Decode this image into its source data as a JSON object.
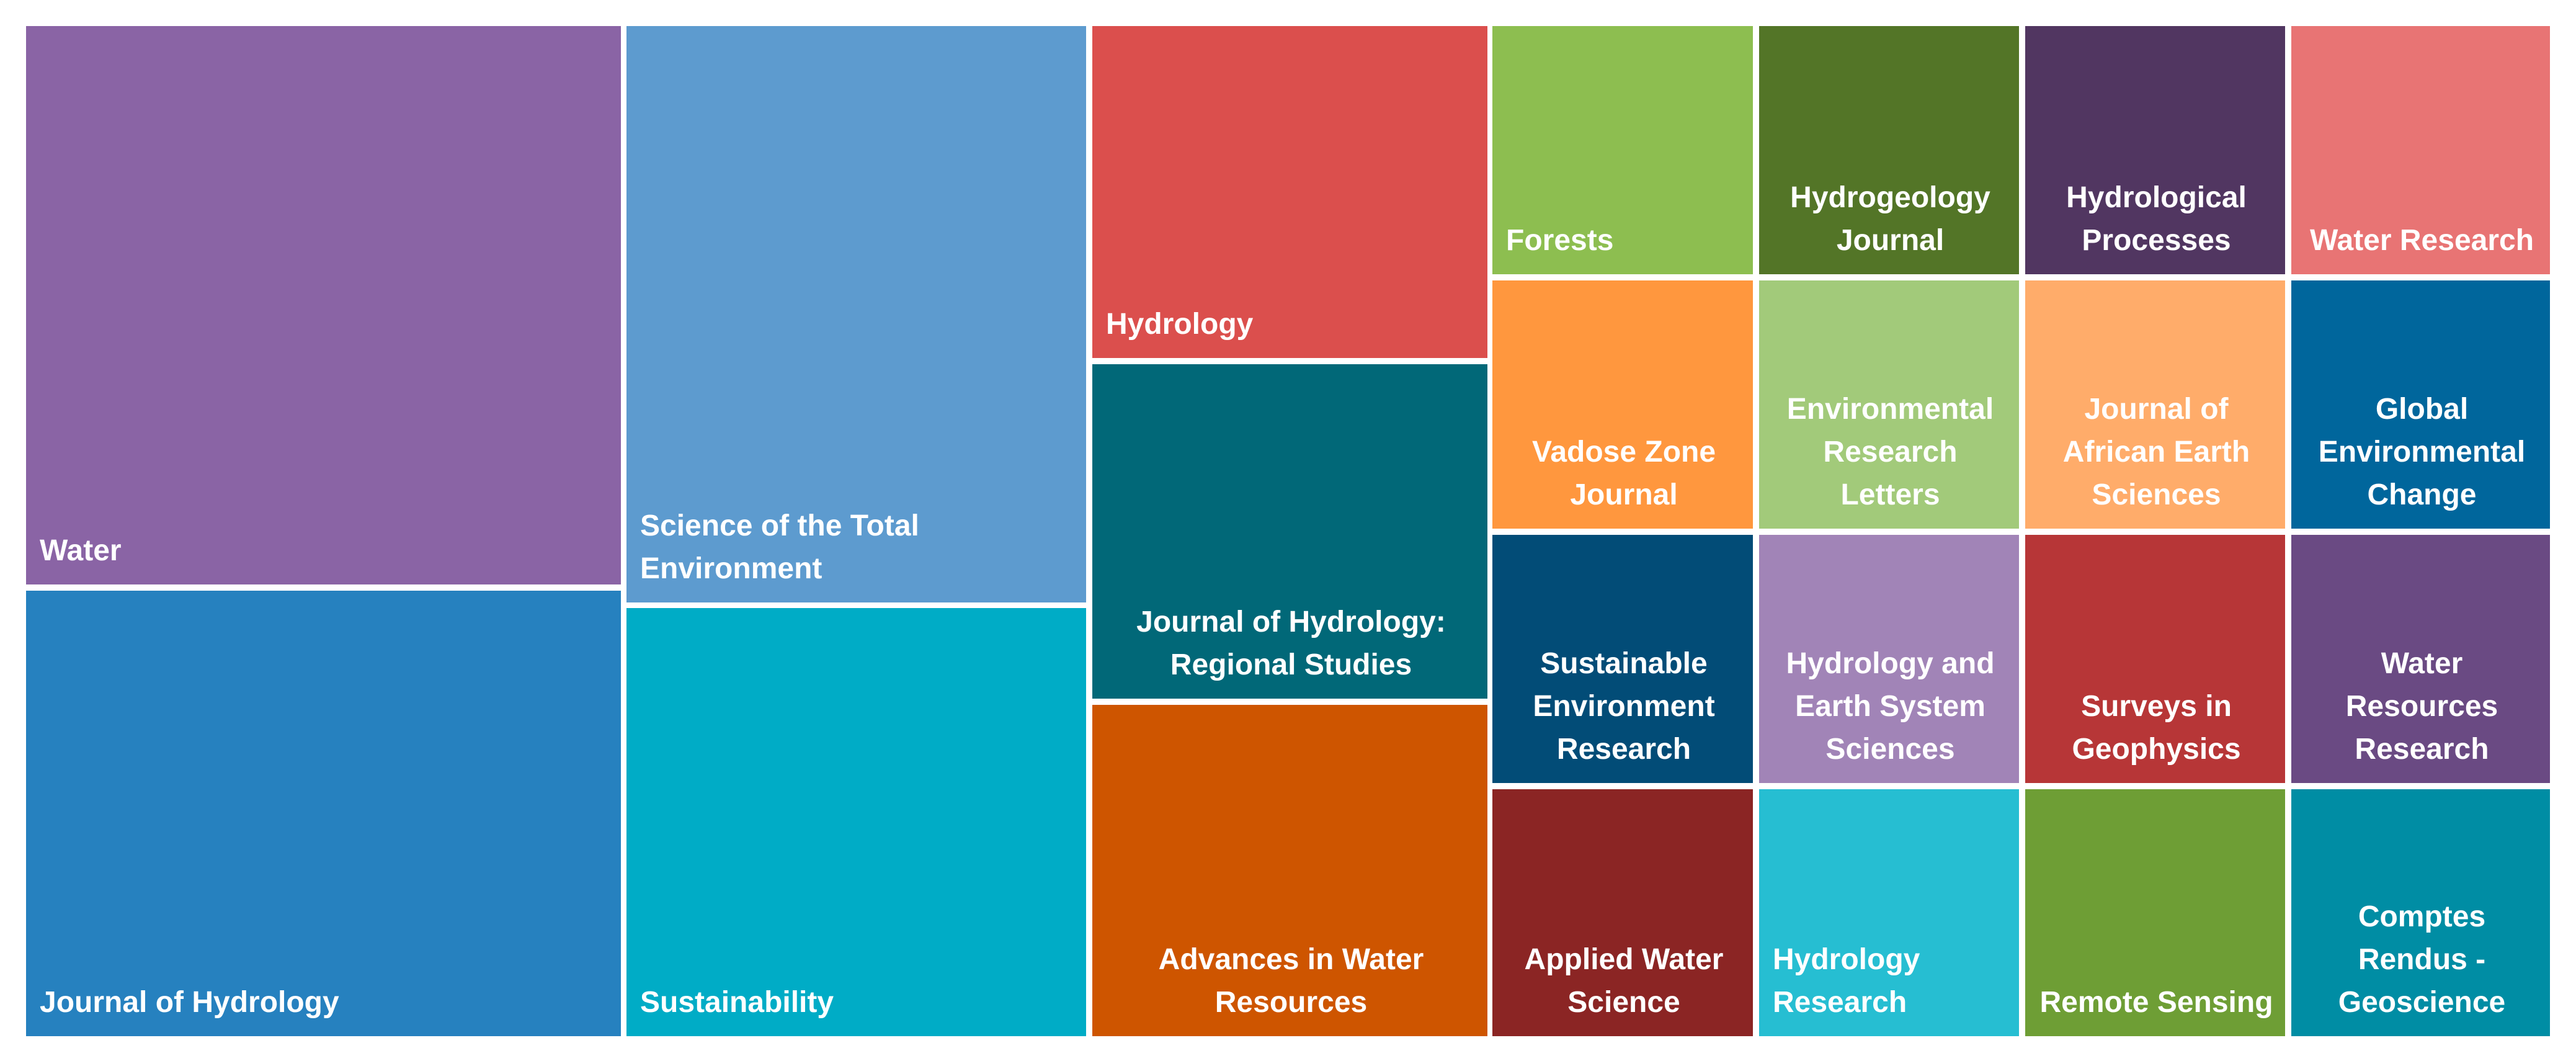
{
  "chart_data": {
    "type": "treemap",
    "tiles": [
      {
        "id": "water",
        "label": "Water",
        "color": "#8A64A5"
      },
      {
        "id": "journal-of-hydrology",
        "label": "Journal of Hydrology",
        "color": "#2681BF"
      },
      {
        "id": "science-of-the-total-environment",
        "label": "Science of the Total\nEnvironment",
        "color": "#5D9BCF"
      },
      {
        "id": "sustainability",
        "label": "Sustainability",
        "color": "#00ACC6"
      },
      {
        "id": "hydrology",
        "label": "Hydrology",
        "color": "#DB4F4D"
      },
      {
        "id": "journal-of-hydrology-regional-studies",
        "label": "Journal of Hydrology:\nRegional Studies",
        "color": "#016878"
      },
      {
        "id": "advances-in-water-resources",
        "label": "Advances in Water\nResources",
        "color": "#CE5500"
      },
      {
        "id": "forests",
        "label": "Forests",
        "color": "#8DBE50"
      },
      {
        "id": "hydrogeology-journal",
        "label": "Hydrogeology\nJournal",
        "color": "#537527"
      },
      {
        "id": "hydrological-processes",
        "label": "Hydrological\nProcesses",
        "color": "#513661"
      },
      {
        "id": "water-research",
        "label": "Water Research",
        "color": "#E87474"
      },
      {
        "id": "vadose-zone-journal",
        "label": "Vadose Zone\nJournal",
        "color": "#FF973E"
      },
      {
        "id": "environmental-research-letters",
        "label": "Environmental\nResearch Letters",
        "color": "#A2CA7A"
      },
      {
        "id": "journal-of-african-earth-sciences",
        "label": "Journal of\nAfrican Earth\nSciences",
        "color": "#FFAC6A"
      },
      {
        "id": "global-environmental-change",
        "label": "Global\nEnvironmental\nChange",
        "color": "#00669C"
      },
      {
        "id": "sustainable-environment-research",
        "label": "Sustainable\nEnvironment\nResearch",
        "color": "#024C77"
      },
      {
        "id": "hydrology-and-earth-system-sciences",
        "label": "Hydrology and\nEarth System\nSciences",
        "color": "#A184B7"
      },
      {
        "id": "surveys-in-geophysics",
        "label": "Surveys in\nGeophysics",
        "color": "#B73637"
      },
      {
        "id": "water-resources-research",
        "label": "Water\nResources\nResearch",
        "color": "#6A4A83"
      },
      {
        "id": "applied-water-science",
        "label": "Applied Water\nScience",
        "color": "#8B2524"
      },
      {
        "id": "hydrology-research",
        "label": "Hydrology\nResearch",
        "color": "#26BED2"
      },
      {
        "id": "remote-sensing",
        "label": "Remote Sensing",
        "color": "#6E9E35"
      },
      {
        "id": "comptes-rendus-geoscience",
        "label": "Comptes\nRendus -\nGeoscience",
        "color": "#008DA4"
      }
    ]
  }
}
